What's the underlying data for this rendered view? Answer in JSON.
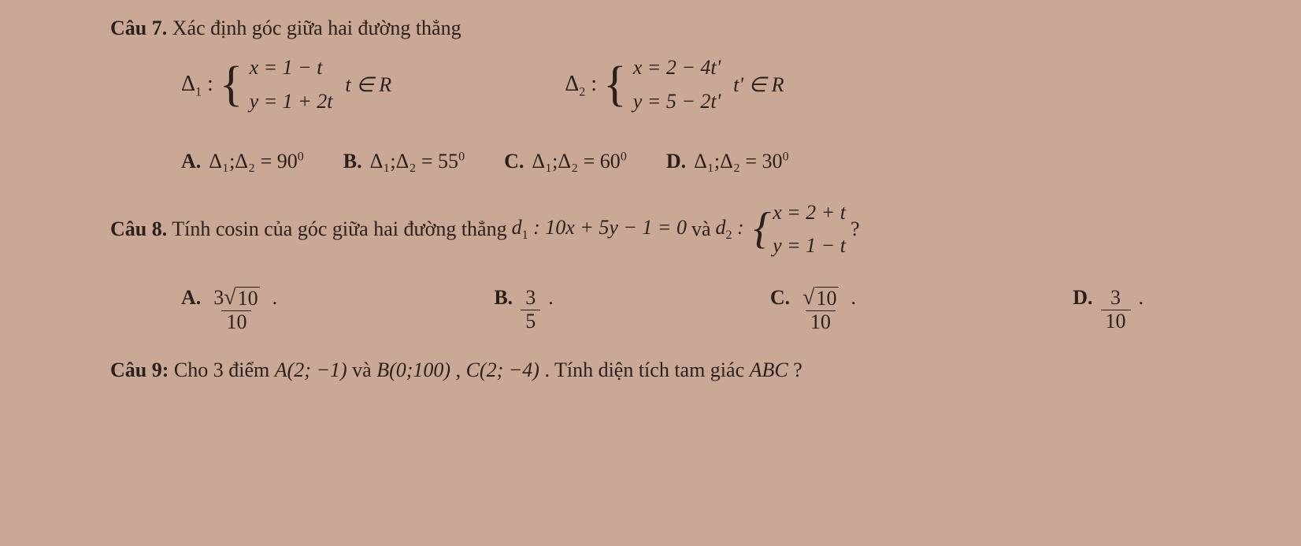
{
  "colors": {
    "background": "#c9a896",
    "text": "#2a1f1a",
    "rule": "#2a1f1a"
  },
  "typography": {
    "font_family": "Times New Roman",
    "base_size_pt": 20,
    "header_weight": "bold"
  },
  "q7": {
    "header_bold": "Câu 7.",
    "header_rest": " Xác định góc giữa hai đường thẳng",
    "sys1": {
      "label_delta": "Δ",
      "label_sub": "1",
      "colon": " :",
      "line1": "x = 1 − t",
      "line2": "y = 1 + 2t",
      "domain": "t ∈ R"
    },
    "sys2": {
      "label_delta": "Δ",
      "label_sub": "2",
      "colon": " :",
      "line1": "x = 2 − 4t'",
      "line2": "y = 5 − 2t'",
      "domain": "t' ∈ R"
    },
    "options": {
      "A": {
        "label": "A.",
        "lhs": "Δ₁;Δ₂",
        "eq": " = 90",
        "deg": "0"
      },
      "B": {
        "label": "B.",
        "lhs": "Δ₁;Δ₂",
        "eq": " = 55",
        "deg": "0"
      },
      "C": {
        "label": "C.",
        "lhs": "Δ₁;Δ₂",
        "eq": " = 60",
        "deg": "0"
      },
      "D": {
        "label": "D.",
        "lhs": "Δ₁;Δ₂",
        "eq": " = 30",
        "deg": "0"
      }
    }
  },
  "q8": {
    "header_bold": "Câu 8.",
    "text1": " Tính cosin của góc giữa hai đường thẳng ",
    "d1_label": "d",
    "d1_sub": "1",
    "d1_eq": " : 10x + 5y − 1 = 0",
    "and": " và ",
    "d2_label": "d",
    "d2_sub": "2",
    "d2_colon": " :",
    "sys": {
      "line1": "x = 2 + t",
      "line2": "y = 1 − t"
    },
    "qmark": "?",
    "options": {
      "A": {
        "label": "A.",
        "num_pre": "3",
        "radicand": "10",
        "den": "10",
        "dot": "."
      },
      "B": {
        "label": "B.",
        "num": "3",
        "den": "5",
        "dot": "."
      },
      "C": {
        "label": "C.",
        "radicand": "10",
        "den": "10",
        "dot": "."
      },
      "D": {
        "label": "D.",
        "num": "3",
        "den": "10",
        "dot": "."
      }
    }
  },
  "q9": {
    "header_bold": "Câu 9:",
    "text1": " Cho 3 điểm  ",
    "ptA": "A(2; −1)",
    "and1": " và ",
    "ptB": "B(0;100)",
    "comma": " , ",
    "ptC": "C(2; −4)",
    "text2": ". Tính diện tích tam giác ",
    "tri": "ABC",
    "qmark": "  ?"
  }
}
